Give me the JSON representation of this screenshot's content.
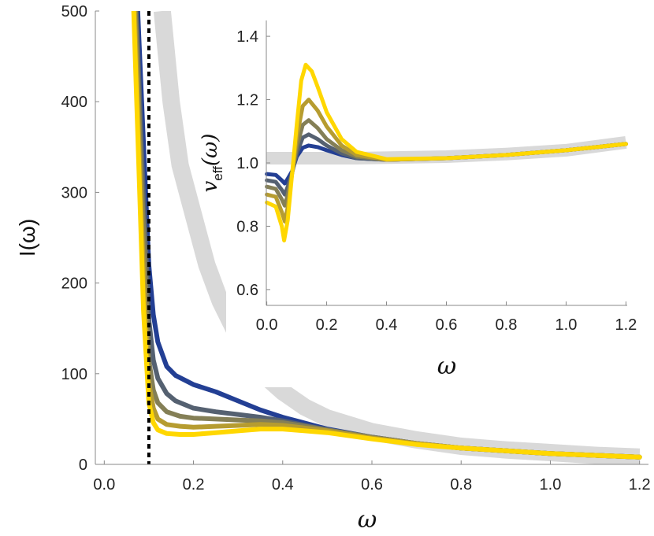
{
  "chart_data": [
    {
      "type": "line",
      "xlabel": "ω",
      "ylabel": "I(ω)",
      "xlim": [
        -0.02,
        1.22
      ],
      "ylim": [
        0,
        500
      ],
      "xticks": [
        "0.0",
        "0.2",
        "0.4",
        "0.6",
        "0.8",
        "1.0",
        "1.2"
      ],
      "yticks": [
        "0",
        "100",
        "200",
        "300",
        "400",
        "500"
      ],
      "reference_line": {
        "style": "dashed",
        "color": "#000000",
        "x": 0.1
      },
      "reference_curve": {
        "color": "#d9d9d9",
        "points": [
          [
            0.13,
            500
          ],
          [
            0.15,
            400
          ],
          [
            0.17,
            330
          ],
          [
            0.2,
            275
          ],
          [
            0.23,
            220
          ],
          [
            0.26,
            180
          ],
          [
            0.3,
            140
          ],
          [
            0.35,
            102
          ],
          [
            0.4,
            80
          ],
          [
            0.45,
            63
          ],
          [
            0.5,
            51
          ],
          [
            0.6,
            36
          ],
          [
            0.7,
            27
          ],
          [
            0.8,
            20
          ],
          [
            0.9,
            16
          ],
          [
            1.0,
            13
          ],
          [
            1.1,
            10
          ],
          [
            1.2,
            8
          ]
        ]
      },
      "series": [
        {
          "color": "#233f94",
          "points": [
            [
              0.075,
              500
            ],
            [
              0.09,
              330
            ],
            [
              0.1,
              220
            ],
            [
              0.11,
              165
            ],
            [
              0.12,
              135
            ],
            [
              0.14,
              108
            ],
            [
              0.16,
              98
            ],
            [
              0.2,
              88
            ],
            [
              0.25,
              80
            ],
            [
              0.3,
              70
            ],
            [
              0.35,
              60
            ],
            [
              0.4,
              52
            ],
            [
              0.5,
              39
            ],
            [
              0.6,
              30
            ],
            [
              0.7,
              23
            ],
            [
              0.8,
              18
            ],
            [
              0.9,
              15
            ],
            [
              1.0,
              12
            ],
            [
              1.1,
              10
            ],
            [
              1.2,
              8
            ]
          ]
        },
        {
          "color": "#556171",
          "points": [
            [
              0.072,
              500
            ],
            [
              0.085,
              330
            ],
            [
              0.1,
              160
            ],
            [
              0.11,
              115
            ],
            [
              0.12,
              95
            ],
            [
              0.14,
              78
            ],
            [
              0.16,
              70
            ],
            [
              0.2,
              62
            ],
            [
              0.25,
              58
            ],
            [
              0.3,
              55
            ],
            [
              0.35,
              52
            ],
            [
              0.4,
              48
            ],
            [
              0.5,
              38
            ],
            [
              0.6,
              30
            ],
            [
              0.7,
              23
            ],
            [
              0.8,
              18
            ],
            [
              0.9,
              15
            ],
            [
              1.0,
              12
            ],
            [
              1.1,
              10
            ],
            [
              1.2,
              8
            ]
          ]
        },
        {
          "color": "#847f56",
          "points": [
            [
              0.07,
              500
            ],
            [
              0.083,
              320
            ],
            [
              0.1,
              115
            ],
            [
              0.11,
              82
            ],
            [
              0.12,
              68
            ],
            [
              0.14,
              58
            ],
            [
              0.17,
              53
            ],
            [
              0.2,
              51
            ],
            [
              0.25,
              50
            ],
            [
              0.3,
              49
            ],
            [
              0.35,
              48
            ],
            [
              0.4,
              46
            ],
            [
              0.5,
              38
            ],
            [
              0.6,
              30
            ],
            [
              0.7,
              23
            ],
            [
              0.8,
              18
            ],
            [
              0.9,
              15
            ],
            [
              1.0,
              12
            ],
            [
              1.1,
              10
            ],
            [
              1.2,
              8
            ]
          ]
        },
        {
          "color": "#b69c30",
          "points": [
            [
              0.068,
              500
            ],
            [
              0.08,
              320
            ],
            [
              0.09,
              180
            ],
            [
              0.1,
              90
            ],
            [
              0.11,
              62
            ],
            [
              0.12,
              50
            ],
            [
              0.14,
              44
            ],
            [
              0.17,
              42
            ],
            [
              0.2,
              41
            ],
            [
              0.25,
              42
            ],
            [
              0.3,
              43
            ],
            [
              0.35,
              44
            ],
            [
              0.4,
              43
            ],
            [
              0.5,
              37
            ],
            [
              0.6,
              29
            ],
            [
              0.7,
              23
            ],
            [
              0.8,
              18
            ],
            [
              0.9,
              15
            ],
            [
              1.0,
              12
            ],
            [
              1.1,
              10
            ],
            [
              1.2,
              8
            ]
          ]
        },
        {
          "color": "#ffd700",
          "points": [
            [
              0.066,
              500
            ],
            [
              0.078,
              320
            ],
            [
              0.088,
              170
            ],
            [
              0.1,
              68
            ],
            [
              0.11,
              46
            ],
            [
              0.12,
              38
            ],
            [
              0.14,
              34
            ],
            [
              0.17,
              33
            ],
            [
              0.2,
              33
            ],
            [
              0.25,
              35
            ],
            [
              0.3,
              37
            ],
            [
              0.35,
              39
            ],
            [
              0.4,
              39
            ],
            [
              0.5,
              35
            ],
            [
              0.6,
              28
            ],
            [
              0.7,
              22
            ],
            [
              0.8,
              18
            ],
            [
              0.9,
              15
            ],
            [
              1.0,
              12
            ],
            [
              1.1,
              10
            ],
            [
              1.2,
              8
            ]
          ]
        }
      ]
    },
    {
      "type": "line",
      "inset": true,
      "xlabel": "ω",
      "ylabel_main": "v",
      "ylabel_sub": "eff",
      "ylabel_tail": "(ω)",
      "xlim": [
        -0.02,
        1.22
      ],
      "ylim": [
        0.55,
        1.45
      ],
      "xticks": [
        "0.0",
        "0.2",
        "0.4",
        "0.6",
        "0.8",
        "1.0",
        "1.2"
      ],
      "yticks": [
        "0.6",
        "0.8",
        "1.0",
        "1.2",
        "1.4"
      ],
      "reference_curve": {
        "color": "#d9d9d9",
        "points": [
          [
            0.0,
            1.015
          ],
          [
            0.3,
            1.015
          ],
          [
            0.6,
            1.02
          ],
          [
            0.8,
            1.028
          ],
          [
            1.0,
            1.04
          ],
          [
            1.2,
            1.065
          ]
        ]
      },
      "series": [
        {
          "color": "#233f94",
          "points": [
            [
              0.0,
              0.965
            ],
            [
              0.03,
              0.962
            ],
            [
              0.05,
              0.945
            ],
            [
              0.06,
              0.935
            ],
            [
              0.07,
              0.95
            ],
            [
              0.085,
              0.975
            ],
            [
              0.1,
              1.02
            ],
            [
              0.12,
              1.048
            ],
            [
              0.14,
              1.055
            ],
            [
              0.17,
              1.05
            ],
            [
              0.2,
              1.04
            ],
            [
              0.25,
              1.025
            ],
            [
              0.3,
              1.015
            ],
            [
              0.4,
              1.01
            ],
            [
              0.6,
              1.015
            ],
            [
              0.8,
              1.025
            ],
            [
              1.0,
              1.04
            ],
            [
              1.2,
              1.06
            ]
          ]
        },
        {
          "color": "#556171",
          "points": [
            [
              0.0,
              0.945
            ],
            [
              0.03,
              0.94
            ],
            [
              0.05,
              0.915
            ],
            [
              0.06,
              0.9
            ],
            [
              0.07,
              0.925
            ],
            [
              0.085,
              0.97
            ],
            [
              0.1,
              1.03
            ],
            [
              0.12,
              1.08
            ],
            [
              0.14,
              1.09
            ],
            [
              0.17,
              1.075
            ],
            [
              0.2,
              1.055
            ],
            [
              0.25,
              1.03
            ],
            [
              0.3,
              1.015
            ],
            [
              0.4,
              1.01
            ],
            [
              0.6,
              1.015
            ],
            [
              0.8,
              1.025
            ],
            [
              1.0,
              1.04
            ],
            [
              1.2,
              1.06
            ]
          ]
        },
        {
          "color": "#847f56",
          "points": [
            [
              0.0,
              0.925
            ],
            [
              0.03,
              0.918
            ],
            [
              0.05,
              0.885
            ],
            [
              0.06,
              0.865
            ],
            [
              0.07,
              0.9
            ],
            [
              0.085,
              0.97
            ],
            [
              0.1,
              1.05
            ],
            [
              0.12,
              1.12
            ],
            [
              0.14,
              1.135
            ],
            [
              0.17,
              1.11
            ],
            [
              0.2,
              1.075
            ],
            [
              0.25,
              1.04
            ],
            [
              0.3,
              1.02
            ],
            [
              0.4,
              1.01
            ],
            [
              0.6,
              1.015
            ],
            [
              0.8,
              1.025
            ],
            [
              1.0,
              1.04
            ],
            [
              1.2,
              1.06
            ]
          ]
        },
        {
          "color": "#b69c30",
          "points": [
            [
              0.0,
              0.9
            ],
            [
              0.03,
              0.893
            ],
            [
              0.05,
              0.845
            ],
            [
              0.06,
              0.815
            ],
            [
              0.07,
              0.86
            ],
            [
              0.085,
              0.97
            ],
            [
              0.1,
              1.08
            ],
            [
              0.12,
              1.18
            ],
            [
              0.14,
              1.2
            ],
            [
              0.17,
              1.165
            ],
            [
              0.2,
              1.115
            ],
            [
              0.25,
              1.055
            ],
            [
              0.3,
              1.025
            ],
            [
              0.4,
              1.01
            ],
            [
              0.6,
              1.015
            ],
            [
              0.8,
              1.025
            ],
            [
              1.0,
              1.04
            ],
            [
              1.2,
              1.06
            ]
          ]
        },
        {
          "color": "#ffd700",
          "points": [
            [
              0.0,
              0.875
            ],
            [
              0.03,
              0.862
            ],
            [
              0.05,
              0.8
            ],
            [
              0.058,
              0.755
            ],
            [
              0.07,
              0.82
            ],
            [
              0.085,
              0.97
            ],
            [
              0.1,
              1.12
            ],
            [
              0.115,
              1.26
            ],
            [
              0.13,
              1.31
            ],
            [
              0.15,
              1.29
            ],
            [
              0.17,
              1.24
            ],
            [
              0.2,
              1.16
            ],
            [
              0.25,
              1.075
            ],
            [
              0.3,
              1.035
            ],
            [
              0.4,
              1.012
            ],
            [
              0.6,
              1.015
            ],
            [
              0.8,
              1.025
            ],
            [
              1.0,
              1.04
            ],
            [
              1.2,
              1.06
            ]
          ]
        }
      ]
    }
  ]
}
